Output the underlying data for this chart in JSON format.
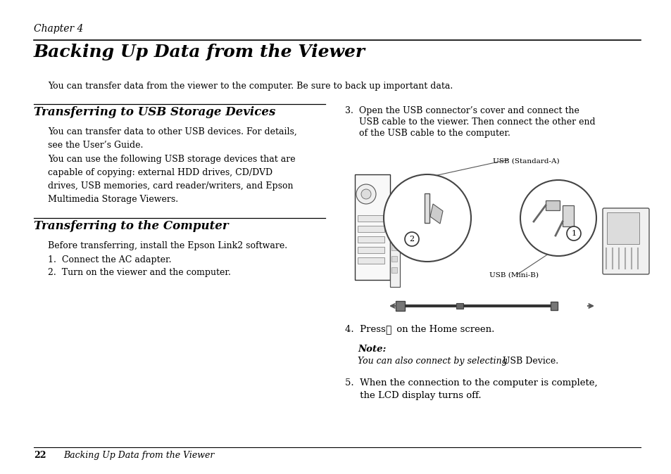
{
  "bg_color": "#ffffff",
  "chapter_label": "Chapter 4",
  "main_title": "Backing Up Data from the Viewer",
  "intro_text": "You can transfer data from the viewer to the computer. Be sure to back up important data.",
  "section1_title": "Transferring to USB Storage Devices",
  "section1_para1": "You can transfer data to other USB devices. For details,\nsee the User’s Guide.",
  "section1_para2": "You can use the following USB storage devices that are\ncapable of copying: external HDD drives, CD/DVD\ndrives, USB memories, card reader/writers, and Epson\nMultimedia Storage Viewers.",
  "section2_title": "Transferring to the Computer",
  "section2_intro": "Before transferring, install the Epson Link2 software.",
  "section2_item1": "1.  Connect the AC adapter.",
  "section2_item2": "2.  Turn on the viewer and the computer.",
  "step3_line1": "3.  Open the USB connector’s cover and connect the",
  "step3_line2": "     USB cable to the viewer. Then connect the other end",
  "step3_line3": "     of the USB cable to the computer.",
  "usb_standard_label": "USB (Standard-A)",
  "usb_mini_label": "USB (Mini-B)",
  "step4_pre": "4.  Press ",
  "step4_star": "★",
  "step4_post": " on the Home screen.",
  "note_label": "Note:",
  "note_italic": "You can also connect by selecting ",
  "note_mono": "USB Device.",
  "step5_line1": "5.  When the connection to the computer is complete,",
  "step5_line2": "     the LCD display turns off.",
  "footer_page": "22",
  "footer_text": "Backing Up Data from the Viewer",
  "serif": "DejaVu Serif",
  "mono": "DejaVu Sans Mono"
}
